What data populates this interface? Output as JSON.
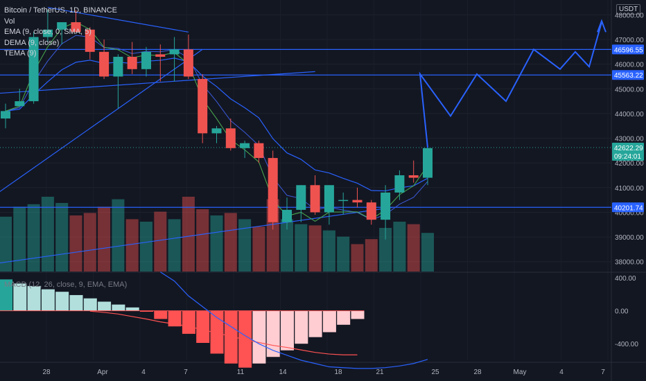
{
  "legend": {
    "title": "Bitcoin / TetherUS, 1D, BINANCE",
    "vol": "Vol",
    "ema": "EMA (9, close, 0, SMA, 5)",
    "dema": "DEMA (9, close)",
    "tema": "TEMA (9)",
    "macd": "MACD (12, 26, close, 9, EMA, EMA)"
  },
  "currency": "USDT",
  "colors": {
    "background": "#131722",
    "up": "#26a69a",
    "down": "#ef5350",
    "line_blue": "#2962ff",
    "macd_signal": "#ff5252",
    "hist_up_strong": "#26a69a",
    "hist_up_weak": "#b2dfdb",
    "hist_down_strong": "#ff5252",
    "hist_down_weak": "#ffcdd2"
  },
  "chart_data": {
    "type": "candlestick",
    "title": "Bitcoin / TetherUS, 1D, BINANCE",
    "x_ticks": [
      "28",
      "Apr",
      "4",
      "7",
      "11",
      "14",
      "18",
      "21",
      "25",
      "28",
      "May",
      "4",
      "7"
    ],
    "price_ticks": [
      "48000.00",
      "47000.00",
      "46000.00",
      "45000.00",
      "44000.00",
      "43000.00",
      "42000.00",
      "41000.00",
      "40000.00",
      "39000.00",
      "38000.00"
    ],
    "price_range": [
      37600,
      48600
    ],
    "macd_ticks": [
      "400.00",
      "0.00",
      "-400.00"
    ],
    "macd_range": [
      -600,
      450
    ],
    "price_tags": [
      {
        "label": "46596.55",
        "value": 46596.55
      },
      {
        "label": "45563.22",
        "value": 45563.22
      },
      {
        "label": "42622.29",
        "value": 42622.29,
        "sub": "09:24:01"
      },
      {
        "label": "40201.74",
        "value": 40201.74
      }
    ],
    "horizontal_levels": [
      46596.55,
      45563.22,
      40201.74
    ],
    "current_price": 42622.29,
    "candles": [
      {
        "o": 43800,
        "h": 44400,
        "l": 43400,
        "c": 44100
      },
      {
        "o": 44300,
        "h": 45000,
        "l": 44300,
        "c": 44500
      },
      {
        "o": 44500,
        "h": 47300,
        "l": 44400,
        "c": 47100
      },
      {
        "o": 47100,
        "h": 48200,
        "l": 46900,
        "c": 47400
      },
      {
        "o": 47400,
        "h": 47700,
        "l": 46800,
        "c": 47700
      },
      {
        "o": 47700,
        "h": 48200,
        "l": 47300,
        "c": 47300
      },
      {
        "o": 47400,
        "h": 47500,
        "l": 46200,
        "c": 46500
      },
      {
        "o": 46500,
        "h": 47000,
        "l": 45400,
        "c": 45500
      },
      {
        "o": 45500,
        "h": 46400,
        "l": 44200,
        "c": 46300
      },
      {
        "o": 46300,
        "h": 46900,
        "l": 45600,
        "c": 45800
      },
      {
        "o": 45800,
        "h": 46700,
        "l": 45500,
        "c": 46500
      },
      {
        "o": 46400,
        "h": 46800,
        "l": 45300,
        "c": 46300
      },
      {
        "o": 46400,
        "h": 47100,
        "l": 45300,
        "c": 46600
      },
      {
        "o": 46600,
        "h": 47200,
        "l": 45400,
        "c": 45500
      },
      {
        "o": 45400,
        "h": 45600,
        "l": 42800,
        "c": 43200
      },
      {
        "o": 43200,
        "h": 43500,
        "l": 42800,
        "c": 43400
      },
      {
        "o": 43400,
        "h": 43800,
        "l": 42500,
        "c": 42600
      },
      {
        "o": 42600,
        "h": 42900,
        "l": 42200,
        "c": 42800
      },
      {
        "o": 42800,
        "h": 42900,
        "l": 42000,
        "c": 42200
      },
      {
        "o": 42200,
        "h": 42500,
        "l": 39300,
        "c": 39600
      },
      {
        "o": 39600,
        "h": 40600,
        "l": 39300,
        "c": 40100
      },
      {
        "o": 40100,
        "h": 41100,
        "l": 39600,
        "c": 41100
      },
      {
        "o": 41100,
        "h": 41500,
        "l": 39900,
        "c": 40000
      },
      {
        "o": 40000,
        "h": 41100,
        "l": 39500,
        "c": 41100
      },
      {
        "o": 40500,
        "h": 40800,
        "l": 39900,
        "c": 40500
      },
      {
        "o": 40500,
        "h": 41000,
        "l": 40200,
        "c": 40400
      },
      {
        "o": 40400,
        "h": 40500,
        "l": 39500,
        "c": 39700
      },
      {
        "o": 39700,
        "h": 41100,
        "l": 38900,
        "c": 40800
      },
      {
        "o": 40800,
        "h": 41700,
        "l": 40500,
        "c": 41500
      },
      {
        "o": 41500,
        "h": 42100,
        "l": 41200,
        "c": 41400
      },
      {
        "o": 41400,
        "h": 42700,
        "l": 41100,
        "c": 42600
      }
    ],
    "volumes": [
      44,
      52,
      54,
      60,
      55,
      45,
      47,
      52,
      58,
      42,
      40,
      48,
      42,
      60,
      50,
      45,
      47,
      42,
      36,
      58,
      42,
      38,
      37,
      33,
      28,
      22,
      26,
      35,
      40,
      38,
      31
    ],
    "macd_hist": [
      380,
      330,
      300,
      260,
      230,
      190,
      150,
      110,
      75,
      40,
      -12,
      -100,
      -190,
      -280,
      -390,
      -520,
      -640,
      -690,
      -640,
      -560,
      -480,
      -400,
      -320,
      -260,
      -170,
      -100
    ],
    "macd_signal_line": [
      -5,
      -20,
      -40,
      -70,
      -100,
      -135,
      -160,
      -190,
      -230,
      -270,
      -310,
      -350,
      -385,
      -420,
      -445,
      -475,
      -505,
      -525,
      -535,
      -535
    ],
    "macd_line": [
      470,
      360,
      180,
      50,
      -80,
      -190,
      -300,
      -400,
      -480,
      -540,
      -600,
      -640,
      -680,
      -690,
      -700,
      -700,
      -690,
      -670,
      -640,
      -590
    ],
    "projection": [
      42622.29,
      45600,
      43900,
      45600,
      44500,
      46600,
      45800,
      46500,
      45900,
      47700
    ]
  }
}
